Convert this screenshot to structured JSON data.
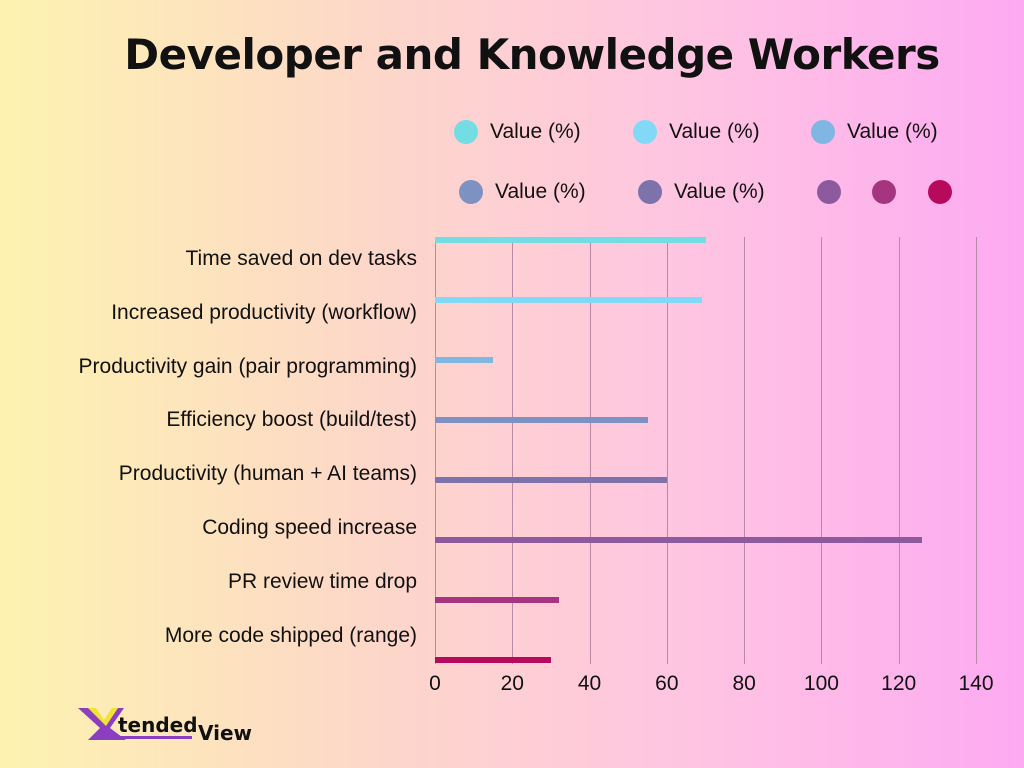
{
  "chart_data": {
    "type": "bar",
    "orientation": "horizontal",
    "title": "Developer and Knowledge Workers",
    "categories": [
      "Time saved on dev tasks",
      "Increased productivity (workflow)",
      "Productivity gain (pair programming)",
      "Efficiency boost (build/test)",
      "Productivity (human + AI teams)",
      "Coding speed increase",
      "PR review time drop",
      "More code shipped (range)"
    ],
    "values": [
      70,
      69,
      15,
      55,
      60,
      126,
      32,
      30
    ],
    "colors": [
      "#74dde3",
      "#82d9f6",
      "#80b6e2",
      "#7e91c3",
      "#7d72aa",
      "#8e5a9e",
      "#a5357f",
      "#b80a5c"
    ],
    "legend": [
      "Value (%)",
      "Value (%)",
      "Value (%)",
      "Value (%)",
      "Value (%)",
      "",
      "",
      ""
    ],
    "xlim": [
      0,
      140
    ],
    "xticks": [
      "0",
      "20",
      "40",
      "60",
      "80",
      "100",
      "120",
      "140"
    ],
    "xlabel": "",
    "ylabel": "",
    "grid": true,
    "legend_placement": "top"
  },
  "brand": {
    "logo_text": "XtendedView"
  }
}
